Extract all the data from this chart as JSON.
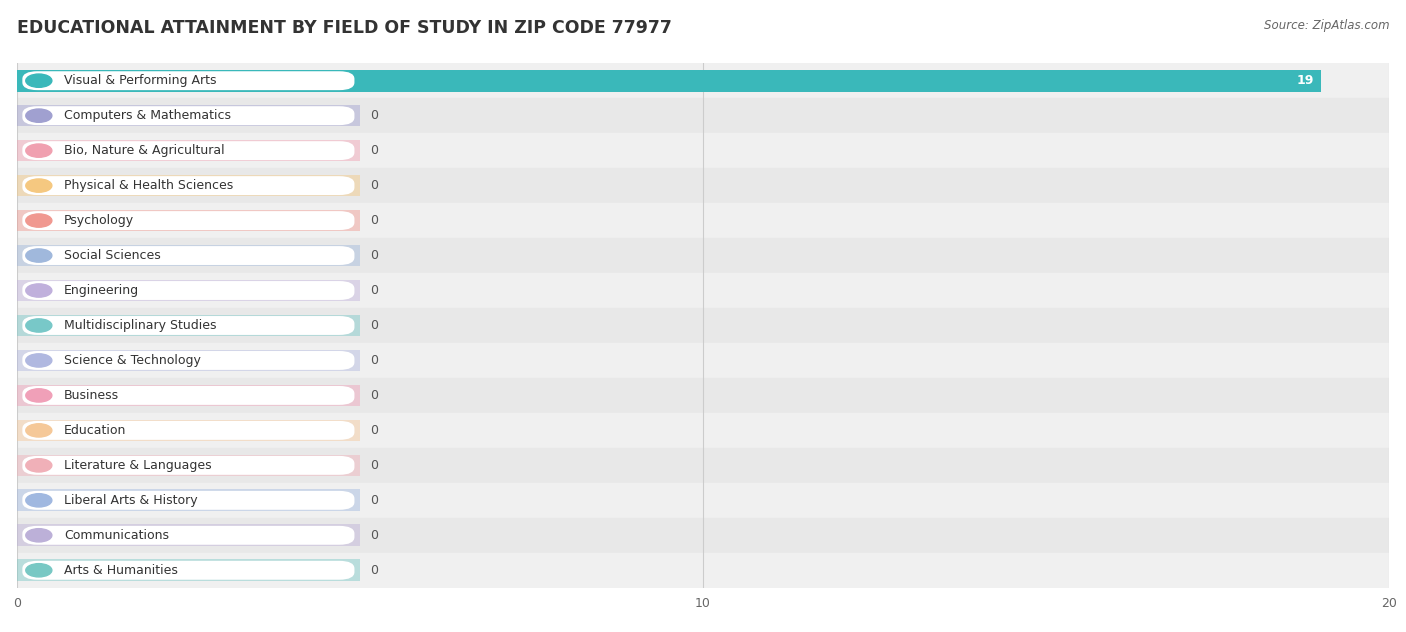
{
  "title": "EDUCATIONAL ATTAINMENT BY FIELD OF STUDY IN ZIP CODE 77977",
  "source": "Source: ZipAtlas.com",
  "categories": [
    "Visual & Performing Arts",
    "Computers & Mathematics",
    "Bio, Nature & Agricultural",
    "Physical & Health Sciences",
    "Psychology",
    "Social Sciences",
    "Engineering",
    "Multidisciplinary Studies",
    "Science & Technology",
    "Business",
    "Education",
    "Literature & Languages",
    "Liberal Arts & History",
    "Communications",
    "Arts & Humanities"
  ],
  "values": [
    19,
    0,
    0,
    0,
    0,
    0,
    0,
    0,
    0,
    0,
    0,
    0,
    0,
    0,
    0
  ],
  "bar_colors": [
    "#3ab8ba",
    "#a0a0d0",
    "#f0a0b0",
    "#f5c880",
    "#f09890",
    "#a0b8dc",
    "#c0b0dc",
    "#78c8c8",
    "#b0b8e0",
    "#f0a0b8",
    "#f5c898",
    "#f0b0b8",
    "#a0b8e0",
    "#bcb0d8",
    "#78c8c4"
  ],
  "xlim": [
    0,
    20
  ],
  "background_color": "#ffffff",
  "grid_color": "#cccccc",
  "title_fontsize": 12.5,
  "label_fontsize": 9,
  "value_fontsize": 9,
  "bar_height": 0.62,
  "row_colors": [
    "#f0f0f0",
    "#e8e8e8"
  ]
}
